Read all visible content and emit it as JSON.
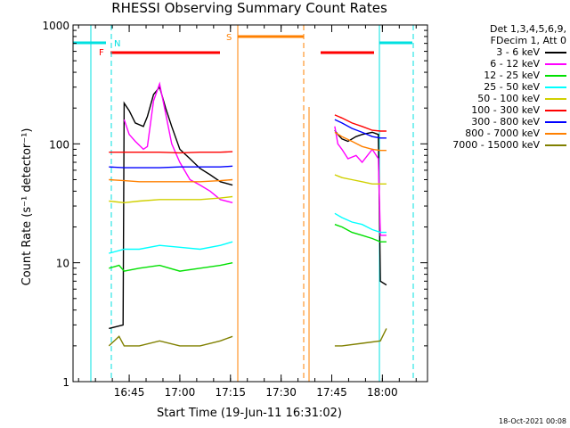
{
  "chart_data": {
    "type": "line",
    "title": "RHESSI Observing Summary Count Rates",
    "xlabel": "Start Time (19-Jun-11 16:31:02)",
    "ylabel": "Count Rate (s⁻¹ detector⁻¹)",
    "y_scale": "log",
    "ylim": [
      1,
      1000
    ],
    "xlim_minutes": [
      16.5,
      18.25
    ],
    "x_ticks": [
      {
        "label": "16:45",
        "hour": 16.75
      },
      {
        "label": "17:00",
        "hour": 17.0
      },
      {
        "label": "17:15",
        "hour": 17.25
      },
      {
        "label": "17:30",
        "hour": 17.5
      },
      {
        "label": "17:45",
        "hour": 17.75
      },
      {
        "label": "18:00",
        "hour": 18.0
      }
    ],
    "y_ticks": [
      {
        "label": "1",
        "value": 1
      },
      {
        "label": "10",
        "value": 10
      },
      {
        "label": "100",
        "value": 100
      },
      {
        "label": "1000",
        "value": 1000
      }
    ],
    "legend": {
      "header": [
        "Det 1,3,4,5,6,9,",
        "FDecim 1, Att 0"
      ],
      "position": "right"
    },
    "series": [
      {
        "name": "3 - 6 keV",
        "color": "#000000",
        "points": [
          [
            16.65,
            2.8
          ],
          [
            16.72,
            3.0
          ],
          [
            16.725,
            220
          ],
          [
            16.75,
            190
          ],
          [
            16.78,
            150
          ],
          [
            16.82,
            140
          ],
          [
            16.84,
            170
          ],
          [
            16.87,
            260
          ],
          [
            16.9,
            300
          ],
          [
            16.93,
            200
          ],
          [
            16.96,
            140
          ],
          [
            17.0,
            90
          ],
          [
            17.05,
            75
          ],
          [
            17.1,
            62
          ],
          [
            17.15,
            55
          ],
          [
            17.2,
            48
          ],
          [
            17.26,
            45
          ],
          [
            17.765,
            130
          ],
          [
            17.78,
            120
          ],
          [
            17.8,
            110
          ],
          [
            17.83,
            105
          ],
          [
            17.87,
            115
          ],
          [
            17.9,
            120
          ],
          [
            17.95,
            125
          ],
          [
            17.98,
            120
          ],
          [
            17.99,
            7
          ],
          [
            18.02,
            6.5
          ]
        ]
      },
      {
        "name": "6 - 12 keV",
        "color": "#ff00ff",
        "points": [
          [
            16.725,
            160
          ],
          [
            16.75,
            120
          ],
          [
            16.78,
            105
          ],
          [
            16.82,
            90
          ],
          [
            16.84,
            95
          ],
          [
            16.87,
            230
          ],
          [
            16.9,
            320
          ],
          [
            16.93,
            180
          ],
          [
            16.96,
            100
          ],
          [
            17.0,
            70
          ],
          [
            17.05,
            50
          ],
          [
            17.1,
            45
          ],
          [
            17.15,
            40
          ],
          [
            17.2,
            34
          ],
          [
            17.26,
            32
          ],
          [
            17.765,
            140
          ],
          [
            17.78,
            100
          ],
          [
            17.8,
            90
          ],
          [
            17.83,
            75
          ],
          [
            17.87,
            80
          ],
          [
            17.9,
            70
          ],
          [
            17.95,
            90
          ],
          [
            17.98,
            75
          ],
          [
            17.99,
            17
          ],
          [
            18.02,
            17
          ]
        ]
      },
      {
        "name": "12 - 25 keV",
        "color": "#00e000",
        "points": [
          [
            16.65,
            9
          ],
          [
            16.7,
            9.5
          ],
          [
            16.725,
            8.5
          ],
          [
            16.8,
            9
          ],
          [
            16.9,
            9.5
          ],
          [
            17.0,
            8.5
          ],
          [
            17.1,
            9
          ],
          [
            17.2,
            9.5
          ],
          [
            17.26,
            10
          ],
          [
            17.765,
            21
          ],
          [
            17.8,
            20
          ],
          [
            17.85,
            18
          ],
          [
            17.9,
            17
          ],
          [
            17.95,
            16
          ],
          [
            17.99,
            15
          ],
          [
            18.02,
            15
          ]
        ]
      },
      {
        "name": "25 - 50 keV",
        "color": "#00ffff",
        "points": [
          [
            16.65,
            12
          ],
          [
            16.725,
            13
          ],
          [
            16.8,
            13
          ],
          [
            16.9,
            14
          ],
          [
            17.0,
            13.5
          ],
          [
            17.1,
            13
          ],
          [
            17.2,
            14
          ],
          [
            17.26,
            15
          ],
          [
            17.765,
            26
          ],
          [
            17.8,
            24
          ],
          [
            17.85,
            22
          ],
          [
            17.9,
            21
          ],
          [
            17.95,
            19
          ],
          [
            17.99,
            18
          ],
          [
            18.02,
            18
          ]
        ]
      },
      {
        "name": "50 - 100 keV",
        "color": "#d0d000",
        "points": [
          [
            16.65,
            33
          ],
          [
            16.725,
            32
          ],
          [
            16.8,
            33
          ],
          [
            16.9,
            34
          ],
          [
            17.0,
            34
          ],
          [
            17.1,
            34
          ],
          [
            17.2,
            35
          ],
          [
            17.26,
            36
          ],
          [
            17.765,
            55
          ],
          [
            17.8,
            52
          ],
          [
            17.85,
            50
          ],
          [
            17.9,
            48
          ],
          [
            17.95,
            46
          ],
          [
            17.99,
            46
          ],
          [
            18.02,
            46
          ]
        ]
      },
      {
        "name": "100 - 300 keV",
        "color": "#ff0000",
        "points": [
          [
            16.65,
            85
          ],
          [
            16.725,
            85
          ],
          [
            16.8,
            85
          ],
          [
            16.9,
            85
          ],
          [
            17.0,
            84
          ],
          [
            17.1,
            85
          ],
          [
            17.2,
            85
          ],
          [
            17.26,
            86
          ],
          [
            17.765,
            175
          ],
          [
            17.8,
            165
          ],
          [
            17.85,
            150
          ],
          [
            17.9,
            140
          ],
          [
            17.95,
            130
          ],
          [
            17.99,
            128
          ],
          [
            18.02,
            128
          ]
        ]
      },
      {
        "name": "300 - 800 keV",
        "color": "#0000ff",
        "points": [
          [
            16.65,
            64
          ],
          [
            16.725,
            63
          ],
          [
            16.8,
            63
          ],
          [
            16.9,
            63
          ],
          [
            17.0,
            64
          ],
          [
            17.1,
            64
          ],
          [
            17.2,
            64
          ],
          [
            17.26,
            65
          ],
          [
            17.765,
            160
          ],
          [
            17.8,
            150
          ],
          [
            17.85,
            135
          ],
          [
            17.9,
            125
          ],
          [
            17.95,
            115
          ],
          [
            17.99,
            112
          ],
          [
            18.02,
            112
          ]
        ]
      },
      {
        "name": "800 - 7000 keV",
        "color": "#ff8000",
        "points": [
          [
            16.65,
            50
          ],
          [
            16.725,
            49
          ],
          [
            16.8,
            48
          ],
          [
            16.9,
            48
          ],
          [
            17.0,
            48
          ],
          [
            17.1,
            48
          ],
          [
            17.2,
            49
          ],
          [
            17.26,
            50
          ],
          [
            17.765,
            125
          ],
          [
            17.8,
            115
          ],
          [
            17.85,
            105
          ],
          [
            17.9,
            95
          ],
          [
            17.95,
            90
          ],
          [
            17.99,
            88
          ],
          [
            18.02,
            88
          ]
        ]
      },
      {
        "name": "7000 - 15000 keV",
        "color": "#808000",
        "points": [
          [
            16.65,
            2
          ],
          [
            16.7,
            2.4
          ],
          [
            16.725,
            2
          ],
          [
            16.8,
            2
          ],
          [
            16.9,
            2.2
          ],
          [
            17.0,
            2
          ],
          [
            17.1,
            2
          ],
          [
            17.2,
            2.2
          ],
          [
            17.26,
            2.4
          ],
          [
            17.765,
            2
          ],
          [
            17.8,
            2
          ],
          [
            17.9,
            2.1
          ],
          [
            17.99,
            2.2
          ],
          [
            18.02,
            2.8
          ]
        ]
      }
    ],
    "annotations": [
      {
        "label": "N",
        "color": "#00e0e0"
      },
      {
        "label": "F",
        "color": "#ff0000"
      },
      {
        "label": "S",
        "color": "#ff8000"
      }
    ]
  },
  "footer": {
    "stamp": "18-Oct-2021 00:08"
  }
}
